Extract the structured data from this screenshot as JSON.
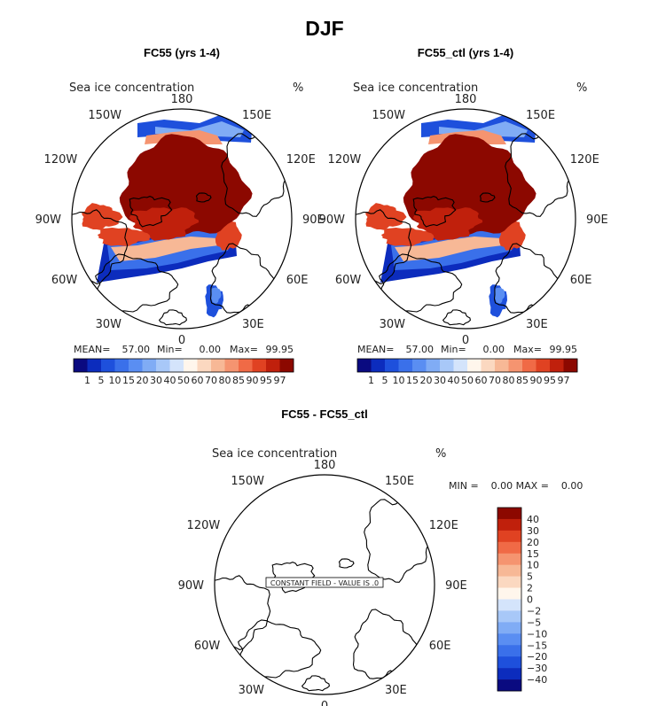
{
  "figure_title": "DJF",
  "chart_data": [
    {
      "type": "polar-map",
      "title": "FC55 (yrs 1-4)",
      "variable": "Sea ice concentration",
      "units": "%",
      "projection": "north-polar-stereographic",
      "lon_labels": [
        "180",
        "150E",
        "120E",
        "90E",
        "60E",
        "30E",
        "0",
        "30W",
        "60W",
        "90W",
        "120W",
        "150W"
      ],
      "stats": {
        "mean_label": "MEAN=",
        "mean": "57.00",
        "min_label": "Min=",
        "min": "0.00",
        "max_label": "Max=",
        "max": "99.95"
      },
      "colorbar": {
        "orientation": "horizontal",
        "ticks": [
          "1",
          "5",
          "10",
          "15",
          "20",
          "30",
          "40",
          "50",
          "60",
          "70",
          "80",
          "85",
          "90",
          "95",
          "97"
        ],
        "colors": [
          "#0a0a80",
          "#0c2cbd",
          "#1e50dc",
          "#3a70ea",
          "#5a8ef2",
          "#80acf5",
          "#a8c8f8",
          "#d4e4fb",
          "#fff6ec",
          "#fbd8c0",
          "#f7b896",
          "#f59470",
          "#f06a46",
          "#e04222",
          "#c0200c",
          "#8c0800"
        ]
      }
    },
    {
      "type": "polar-map",
      "title": "FC55_ctl (yrs 1-4)",
      "variable": "Sea ice concentration",
      "units": "%",
      "projection": "north-polar-stereographic",
      "lon_labels": [
        "180",
        "150E",
        "120E",
        "90E",
        "60E",
        "30E",
        "0",
        "30W",
        "60W",
        "90W",
        "120W",
        "150W"
      ],
      "stats": {
        "mean_label": "MEAN=",
        "mean": "57.00",
        "min_label": "Min=",
        "min": "0.00",
        "max_label": "Max=",
        "max": "99.95"
      },
      "colorbar": {
        "orientation": "horizontal",
        "ticks": [
          "1",
          "5",
          "10",
          "15",
          "20",
          "30",
          "40",
          "50",
          "60",
          "70",
          "80",
          "85",
          "90",
          "95",
          "97"
        ],
        "colors": [
          "#0a0a80",
          "#0c2cbd",
          "#1e50dc",
          "#3a70ea",
          "#5a8ef2",
          "#80acf5",
          "#a8c8f8",
          "#d4e4fb",
          "#fff6ec",
          "#fbd8c0",
          "#f7b896",
          "#f59470",
          "#f06a46",
          "#e04222",
          "#c0200c",
          "#8c0800"
        ]
      }
    },
    {
      "type": "polar-map",
      "title": "FC55 - FC55_ctl",
      "variable": "Sea ice concentration",
      "units": "%",
      "projection": "north-polar-stereographic",
      "lon_labels": [
        "180",
        "150E",
        "120E",
        "90E",
        "60E",
        "30E",
        "0",
        "30W",
        "60W",
        "90W",
        "120W",
        "150W"
      ],
      "stats_line": "MIN =    0.00 MAX =    0.00",
      "note": "CONSTANT FIELD - VALUE IS .0",
      "colorbar": {
        "orientation": "vertical",
        "ticks": [
          "40",
          "30",
          "20",
          "15",
          "10",
          "5",
          "2",
          "0",
          "−2",
          "−5",
          "−10",
          "−15",
          "−20",
          "−30",
          "−40"
        ],
        "colors": [
          "#8c0800",
          "#c0200c",
          "#e04222",
          "#f06a46",
          "#f59470",
          "#f7b896",
          "#fbd8c0",
          "#fff6ec",
          "#d4e4fb",
          "#a8c8f8",
          "#80acf5",
          "#5a8ef2",
          "#3a70ea",
          "#1e50dc",
          "#0c2cbd",
          "#0a0a80"
        ]
      }
    }
  ]
}
